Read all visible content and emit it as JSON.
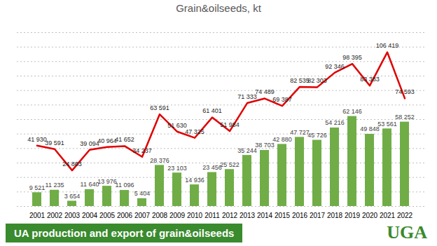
{
  "chart_data": {
    "type": "bar",
    "title": "Grain&oilseeds, kt",
    "subtitle": "UA production and export of grain&oilseeds",
    "annotations": [
      "UGA"
    ],
    "categories": [
      "2001",
      "2002",
      "2003",
      "2004",
      "2005",
      "2006",
      "2007",
      "2008",
      "2009",
      "2010",
      "2011",
      "2012",
      "2013",
      "2014",
      "2015",
      "2016",
      "2017",
      "2018",
      "2019",
      "2020",
      "2021",
      "2022"
    ],
    "series": [
      {
        "type": "bar",
        "color": "#70ad47",
        "values": [
          9521,
          11235,
          3654,
          11640,
          13976,
          11096,
          5404,
          28376,
          23103,
          14936,
          23456,
          25522,
          35244,
          38703,
          42880,
          47727,
          45726,
          54216,
          62146,
          49848,
          53561,
          58252
        ],
        "value_labels": [
          "9 521",
          "11 235",
          "3 654",
          "11 640",
          "13 976",
          "11 096",
          "5 404",
          "28 376",
          "23 103",
          "14 936",
          "23 456",
          "25 522",
          "35 244",
          "38 703",
          "42 880",
          "47 727",
          "45 726",
          "54 216",
          "62 146",
          "49 848",
          "53 561",
          "58 252"
        ]
      },
      {
        "type": "line",
        "color": "#e00000",
        "values": [
          41930,
          39591,
          24863,
          39094,
          40964,
          41652,
          34237,
          63591,
          51630,
          47325,
          61401,
          51984,
          71333,
          74489,
          69387,
          82535,
          82303,
          92346,
          98395,
          83383,
          106419,
          74593
        ],
        "value_labels": [
          "41 930",
          "39 591",
          "24 863",
          "39 094",
          "40 964",
          "41 652",
          "34 237",
          "63 591",
          "51 630",
          "47 325",
          "61 401",
          "51 984",
          "71 333",
          "74 489",
          "69 387",
          "82 535",
          "82 303",
          "92 346",
          "98 395",
          "83 383",
          "106 419",
          "74 593"
        ]
      }
    ],
    "ylim": [
      0,
      120000
    ],
    "yticks": [
      0,
      10000,
      20000,
      30000,
      40000,
      50000,
      60000,
      70000,
      80000,
      90000,
      100000,
      110000,
      120000
    ],
    "grid": true,
    "data_labels": true,
    "tick_labels": "x"
  }
}
